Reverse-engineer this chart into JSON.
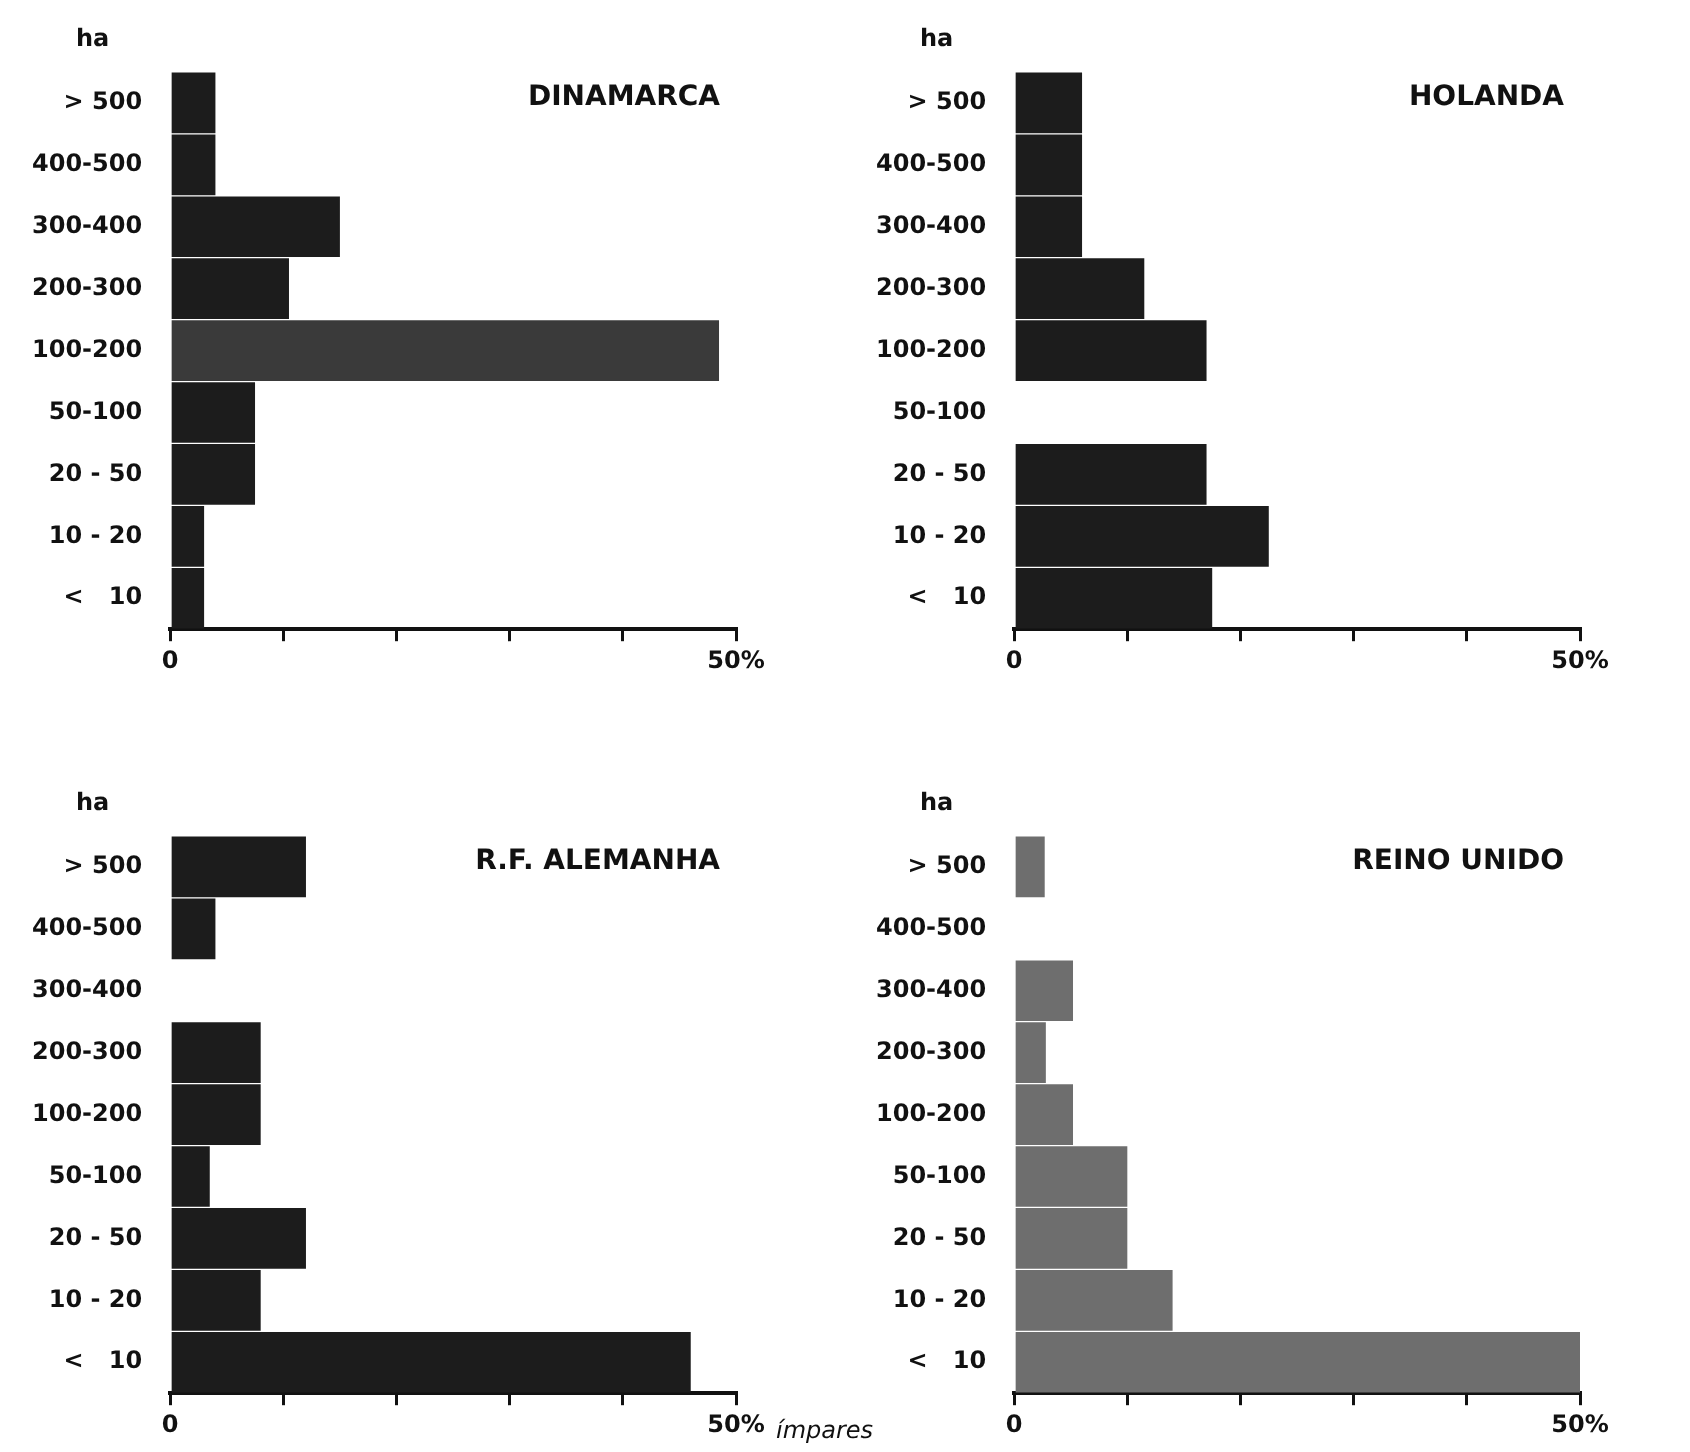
{
  "chart_data": [
    {
      "type": "bar",
      "orientation": "horizontal",
      "title": "DINAMARCA",
      "ylabel": "ha",
      "categories": [
        "> 500",
        "400-500",
        "300-400",
        "200-300",
        "100-200",
        "50-100",
        "20 - 50",
        "10 - 20",
        "<   10"
      ],
      "values": [
        4,
        4,
        15,
        10.5,
        48.5,
        7.5,
        7.5,
        3,
        3
      ],
      "colors": [
        "#1c1c1c",
        "#1c1c1c",
        "#1c1c1c",
        "#1c1c1c",
        "#3a3a3a",
        "#1c1c1c",
        "#1c1c1c",
        "#1c1c1c",
        "#1c1c1c"
      ],
      "xlim": [
        0,
        50
      ],
      "xticks": [
        {
          "value": 0,
          "label": "0"
        },
        {
          "value": 10,
          "label": null
        },
        {
          "value": 20,
          "label": null
        },
        {
          "value": 30,
          "label": null
        },
        {
          "value": 40,
          "label": null
        },
        {
          "value": 50,
          "label": "50%"
        }
      ],
      "grid": false
    },
    {
      "type": "bar",
      "orientation": "horizontal",
      "title": "HOLANDA",
      "ylabel": "ha",
      "categories": [
        "> 500",
        "400-500",
        "300-400",
        "200-300",
        "100-200",
        "50-100",
        "20 - 50",
        "10 - 20",
        "<   10"
      ],
      "values": [
        6,
        6,
        6,
        11.5,
        17,
        0,
        17,
        22.5,
        17.5
      ],
      "color": "#1c1c1c",
      "xlim": [
        0,
        50
      ],
      "xticks": [
        {
          "value": 0,
          "label": "0"
        },
        {
          "value": 10,
          "label": null
        },
        {
          "value": 20,
          "label": null
        },
        {
          "value": 30,
          "label": null
        },
        {
          "value": 40,
          "label": null
        },
        {
          "value": 50,
          "label": "50%"
        }
      ],
      "grid": false
    },
    {
      "type": "bar",
      "orientation": "horizontal",
      "title": "R.F. ALEMANHA",
      "ylabel": "ha",
      "categories": [
        "> 500",
        "400-500",
        "300-400",
        "200-300",
        "100-200",
        "50-100",
        "20 - 50",
        "10 - 20",
        "<   10"
      ],
      "values": [
        12,
        4,
        0,
        8,
        8,
        3.5,
        12,
        8,
        46
      ],
      "color": "#1c1c1c",
      "xlim": [
        0,
        50
      ],
      "xticks": [
        {
          "value": 0,
          "label": "0"
        },
        {
          "value": 10,
          "label": null
        },
        {
          "value": 20,
          "label": null
        },
        {
          "value": 30,
          "label": null
        },
        {
          "value": 40,
          "label": null
        },
        {
          "value": 50,
          "label": "50%"
        }
      ],
      "grid": false,
      "annotations": [
        "ímpares"
      ]
    },
    {
      "type": "bar",
      "orientation": "horizontal",
      "title": "REINO UNIDO",
      "ylabel": "ha",
      "categories": [
        "> 500",
        "400-500",
        "300-400",
        "200-300",
        "100-200",
        "50-100",
        "20 - 50",
        "10 - 20",
        "<   10"
      ],
      "values": [
        2.7,
        0,
        5.2,
        2.8,
        5.2,
        10,
        10,
        14,
        50
      ],
      "color": "#6e6e6e",
      "xlim": [
        0,
        50
      ],
      "xticks": [
        {
          "value": 0,
          "label": "0"
        },
        {
          "value": 10,
          "label": null
        },
        {
          "value": 20,
          "label": null
        },
        {
          "value": 30,
          "label": null
        },
        {
          "value": 40,
          "label": null
        },
        {
          "value": 50,
          "label": "50%"
        }
      ],
      "grid": false
    }
  ]
}
